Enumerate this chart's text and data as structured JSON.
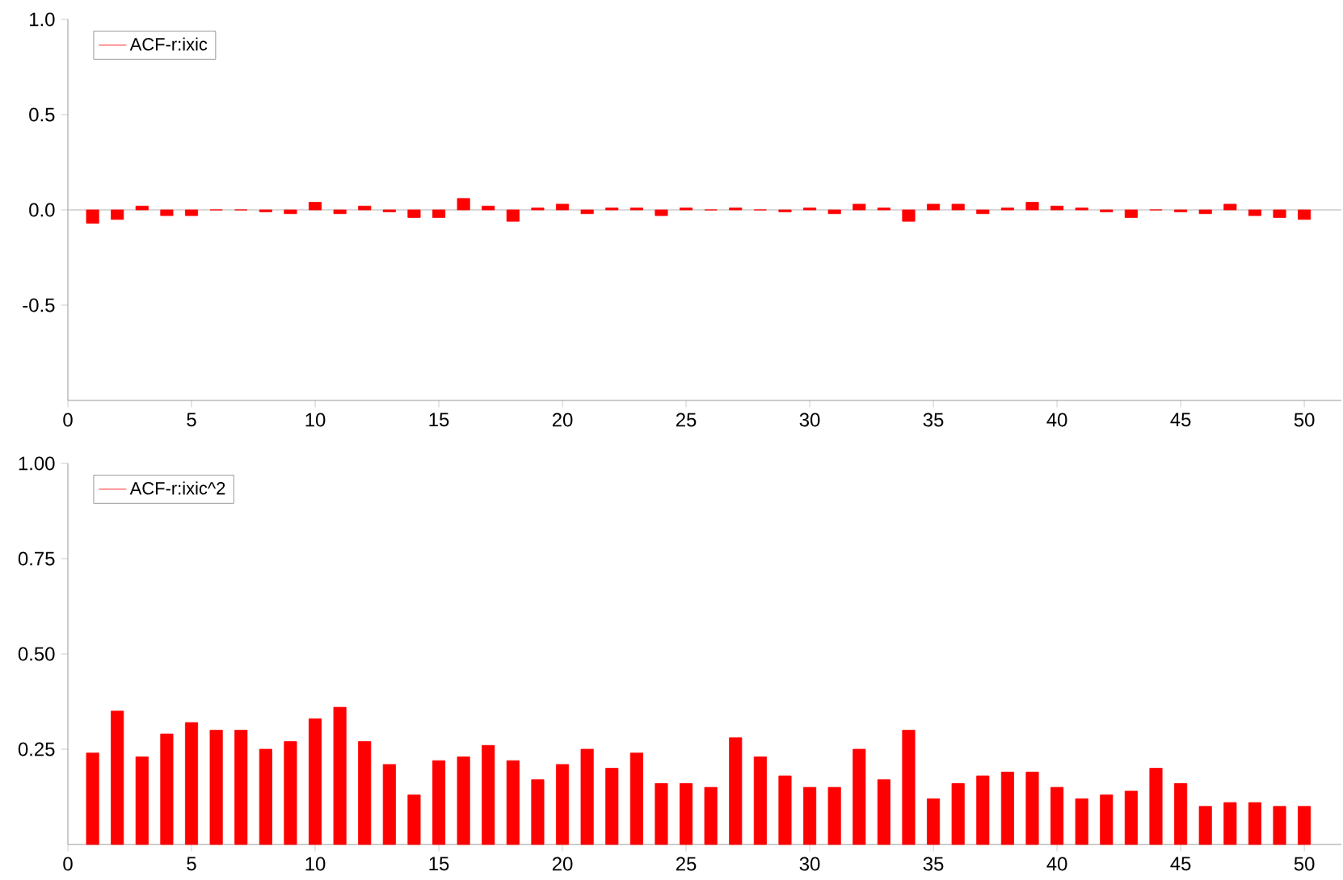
{
  "chart_data": [
    {
      "type": "bar",
      "x": [
        1,
        2,
        3,
        4,
        5,
        6,
        7,
        8,
        9,
        10,
        11,
        12,
        13,
        14,
        15,
        16,
        17,
        18,
        19,
        20,
        21,
        22,
        23,
        24,
        25,
        26,
        27,
        28,
        29,
        30,
        31,
        32,
        33,
        34,
        35,
        36,
        37,
        38,
        39,
        40,
        41,
        42,
        43,
        44,
        45,
        46,
        47,
        48,
        49,
        50
      ],
      "series": [
        {
          "name": "ACF-r:ixic",
          "color": "#ff0000",
          "values": [
            -0.07,
            -0.05,
            0.02,
            -0.03,
            -0.03,
            0.0,
            0.0,
            -0.01,
            -0.02,
            0.04,
            -0.02,
            0.02,
            -0.01,
            -0.04,
            -0.04,
            0.06,
            0.02,
            -0.06,
            0.01,
            0.03,
            -0.02,
            0.01,
            0.01,
            -0.03,
            0.01,
            0.0,
            0.01,
            0.0,
            -0.01,
            0.01,
            -0.02,
            0.03,
            0.01,
            -0.06,
            0.03,
            0.03,
            -0.02,
            0.01,
            0.04,
            0.02,
            0.01,
            -0.01,
            -0.04,
            0.0,
            -0.01,
            -0.02,
            0.03,
            -0.03,
            -0.04,
            -0.05
          ]
        }
      ],
      "xlim": [
        0,
        51.5
      ],
      "xticks": [
        0,
        5,
        10,
        15,
        20,
        25,
        30,
        35,
        40,
        45,
        50
      ],
      "ylim": [
        -1,
        1
      ],
      "yticks": [
        {
          "value": -0.5,
          "label": "-0.5"
        },
        {
          "value": 0,
          "label": "0.0"
        },
        {
          "value": 0.5,
          "label": "0.5"
        },
        {
          "value": 1,
          "label": "1.0"
        }
      ],
      "ref_lines": [
        {
          "axis": "y",
          "value": 0,
          "color": "#a0a0a0"
        }
      ],
      "legend": "top left"
    },
    {
      "type": "bar",
      "x": [
        1,
        2,
        3,
        4,
        5,
        6,
        7,
        8,
        9,
        10,
        11,
        12,
        13,
        14,
        15,
        16,
        17,
        18,
        19,
        20,
        21,
        22,
        23,
        24,
        25,
        26,
        27,
        28,
        29,
        30,
        31,
        32,
        33,
        34,
        35,
        36,
        37,
        38,
        39,
        40,
        41,
        42,
        43,
        44,
        45,
        46,
        47,
        48,
        49,
        50
      ],
      "series": [
        {
          "name": "ACF-r:ixic^2",
          "color": "#ff0000",
          "values": [
            0.24,
            0.35,
            0.23,
            0.29,
            0.32,
            0.3,
            0.3,
            0.25,
            0.27,
            0.33,
            0.36,
            0.27,
            0.21,
            0.13,
            0.22,
            0.23,
            0.26,
            0.22,
            0.17,
            0.21,
            0.25,
            0.2,
            0.24,
            0.16,
            0.16,
            0.15,
            0.28,
            0.23,
            0.18,
            0.15,
            0.15,
            0.25,
            0.17,
            0.3,
            0.12,
            0.16,
            0.18,
            0.19,
            0.19,
            0.15,
            0.12,
            0.13,
            0.14,
            0.2,
            0.16,
            0.1,
            0.11,
            0.11,
            0.1,
            0.1
          ]
        }
      ],
      "xlim": [
        0,
        51.5
      ],
      "xticks": [
        0,
        5,
        10,
        15,
        20,
        25,
        30,
        35,
        40,
        45,
        50
      ],
      "ylim": [
        0,
        1
      ],
      "yticks": [
        {
          "value": 0.25,
          "label": "0.25"
        },
        {
          "value": 0.5,
          "label": "0.50"
        },
        {
          "value": 0.75,
          "label": "0.75"
        },
        {
          "value": 1,
          "label": "1.00"
        }
      ],
      "legend": "top left"
    }
  ]
}
